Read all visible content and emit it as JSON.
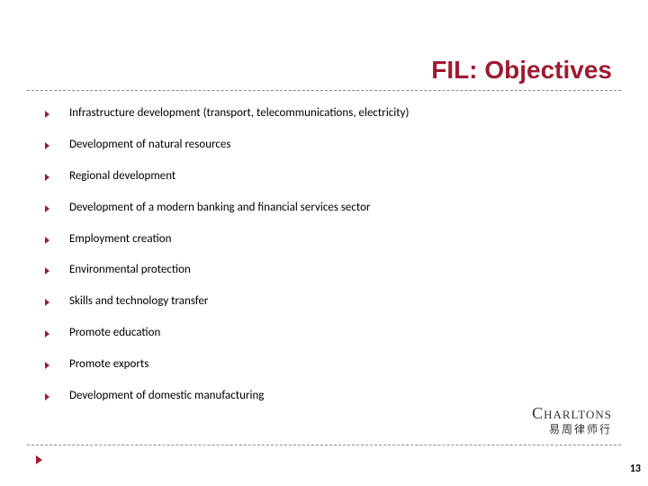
{
  "colors": {
    "accent": "#9e1b32",
    "rule": "#888888",
    "text": "#000000",
    "logo": "#333333"
  },
  "title": "FIL: Objectives",
  "bullets": [
    "Infrastructure development (transport, telecommunications, electricity)",
    "Development of natural resources",
    "Regional development",
    "Development of a modern banking and financial services sector",
    "Employment creation",
    "Environmental protection",
    "Skills and technology transfer",
    "Promote education",
    "Promote exports",
    "Development of domestic manufacturing"
  ],
  "logo": {
    "main": "Charltons",
    "sub": "易周律师行"
  },
  "page_number": "13"
}
